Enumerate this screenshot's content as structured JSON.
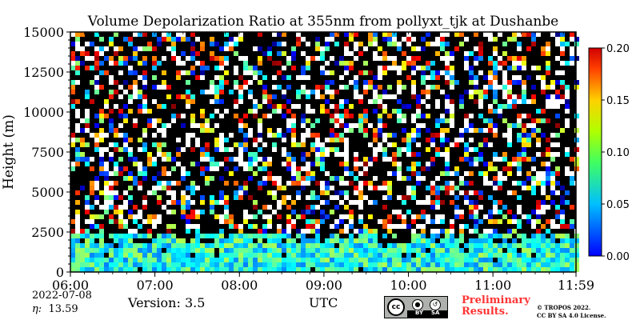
{
  "chart_data": {
    "type": "heatmap",
    "title": "Volume Depolarization Ratio at 355nm from pollyxt_tjk at Dushanbe",
    "ylabel": "Height (m)",
    "xlabel": "UTC",
    "x_ticks": [
      "06:00",
      "07:00",
      "08:00",
      "09:00",
      "10:00",
      "11:00",
      "11:59"
    ],
    "x_range_hours": [
      6.0,
      11.983
    ],
    "y_ticks": [
      0,
      2500,
      5000,
      7500,
      10000,
      12500,
      15000
    ],
    "ylim": [
      0,
      15000
    ],
    "colorbar": {
      "range": [
        0.0,
        0.2
      ],
      "ticks": [
        "0.00",
        "0.05",
        "0.10",
        "0.15",
        "0.20"
      ],
      "colormap": "jet"
    },
    "background_color": "#000000",
    "layers": [
      {
        "height_range_m": [
          0,
          2500
        ],
        "typical_value": 0.08,
        "description_value_range": [
          0.04,
          0.12
        ]
      },
      {
        "height_range_m": [
          2500,
          15000
        ],
        "typical_value": "noise",
        "description_value_range": [
          0.0,
          0.2
        ]
      }
    ]
  },
  "footer": {
    "date": "2022-07-08",
    "eta_label": "η:",
    "eta_value": "13.59",
    "version": "Version: 3.5",
    "utc": "UTC",
    "prelim_line1": "Preliminary",
    "prelim_line2": "Results.",
    "copyright_line1": "© TROPOS 2022.",
    "copyright_line2": "CC BY SA 4.0 License.",
    "cc_text": "cc",
    "by_text": "BY",
    "sa_text": "SA"
  }
}
